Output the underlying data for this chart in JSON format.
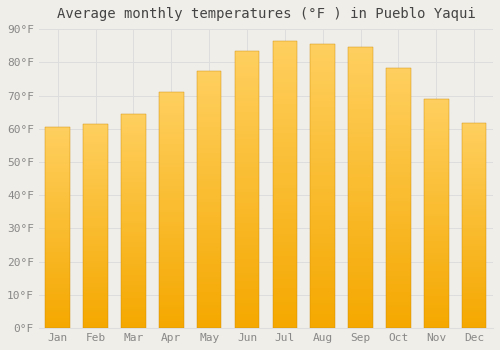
{
  "title": "Average monthly temperatures (°F ) in Pueblo Yaqui",
  "months": [
    "Jan",
    "Feb",
    "Mar",
    "Apr",
    "May",
    "Jun",
    "Jul",
    "Aug",
    "Sep",
    "Oct",
    "Nov",
    "Dec"
  ],
  "values": [
    60.4,
    61.5,
    64.5,
    71.2,
    77.5,
    83.5,
    86.3,
    85.5,
    84.5,
    78.2,
    69.0,
    61.8
  ],
  "bar_color_bottom": "#F5A800",
  "bar_color_top": "#FFD060",
  "background_color": "#F0EEE8",
  "grid_color": "#DDDDDD",
  "ylim": [
    0,
    90
  ],
  "yticks": [
    0,
    10,
    20,
    30,
    40,
    50,
    60,
    70,
    80,
    90
  ],
  "title_fontsize": 10,
  "tick_fontsize": 8,
  "font_family": "monospace"
}
